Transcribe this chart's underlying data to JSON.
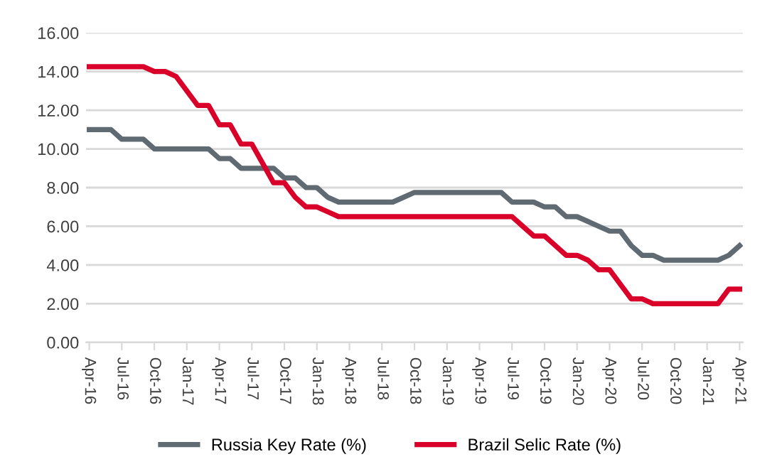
{
  "chart_data": {
    "type": "line",
    "categories": [
      "Apr-16",
      null,
      null,
      "Jul-16",
      null,
      null,
      "Oct-16",
      null,
      null,
      "Jan-17",
      null,
      null,
      "Apr-17",
      null,
      null,
      "Jul-17",
      null,
      null,
      "Oct-17",
      null,
      null,
      "Jan-18",
      null,
      null,
      "Apr-18",
      null,
      null,
      "Jul-18",
      null,
      null,
      "Oct-18",
      null,
      null,
      "Jan-19",
      null,
      null,
      "Apr-19",
      null,
      null,
      "Jul-19",
      null,
      null,
      "Oct-19",
      null,
      null,
      "Jan-20",
      null,
      null,
      "Apr-20",
      null,
      null,
      "Jul-20",
      null,
      null,
      "Oct-20",
      null,
      null,
      "Jan-21",
      null,
      null,
      "Apr-21"
    ],
    "series": [
      {
        "name": "Russia Key Rate (%)",
        "color": "#5f6a72",
        "values": [
          11,
          11,
          11,
          10.5,
          10.5,
          10.5,
          10,
          10,
          10,
          10,
          10,
          10,
          9.5,
          9.5,
          9,
          9,
          9,
          9,
          8.5,
          8.5,
          8,
          8,
          7.5,
          7.25,
          7.25,
          7.25,
          7.25,
          7.25,
          7.25,
          7.5,
          7.75,
          7.75,
          7.75,
          7.75,
          7.75,
          7.75,
          7.75,
          7.75,
          7.75,
          7.25,
          7.25,
          7.25,
          7,
          7,
          6.5,
          6.5,
          6.25,
          6,
          5.75,
          5.75,
          5,
          4.5,
          4.5,
          4.25,
          4.25,
          4.25,
          4.25,
          4.25,
          4.25,
          4.5,
          5
        ]
      },
      {
        "name": "Brazil Selic Rate (%)",
        "color": "#d9002a",
        "values": [
          14.25,
          14.25,
          14.25,
          14.25,
          14.25,
          14.25,
          14,
          14,
          13.75,
          13,
          12.25,
          12.25,
          11.25,
          11.25,
          10.25,
          10.25,
          9.25,
          8.25,
          8.25,
          7.5,
          7,
          7,
          6.75,
          6.5,
          6.5,
          6.5,
          6.5,
          6.5,
          6.5,
          6.5,
          6.5,
          6.5,
          6.5,
          6.5,
          6.5,
          6.5,
          6.5,
          6.5,
          6.5,
          6.5,
          6,
          5.5,
          5.5,
          5,
          4.5,
          4.5,
          4.25,
          3.75,
          3.75,
          3,
          2.25,
          2.25,
          2,
          2,
          2,
          2,
          2,
          2,
          2,
          2.75,
          2.75
        ]
      }
    ],
    "ylim": [
      0,
      16
    ],
    "yticks": [
      {
        "value": 0,
        "label": "0.00"
      },
      {
        "value": 2,
        "label": "2.00"
      },
      {
        "value": 4,
        "label": "4.00"
      },
      {
        "value": 6,
        "label": "6.00"
      },
      {
        "value": 8,
        "label": "8.00"
      },
      {
        "value": 10,
        "label": "10.00"
      },
      {
        "value": 12,
        "label": "12.00"
      },
      {
        "value": 14,
        "label": "14.00"
      },
      {
        "value": 16,
        "label": "16.00"
      }
    ],
    "grid": "y",
    "legend": "bottom",
    "marker": "none",
    "line_style": "solid"
  }
}
